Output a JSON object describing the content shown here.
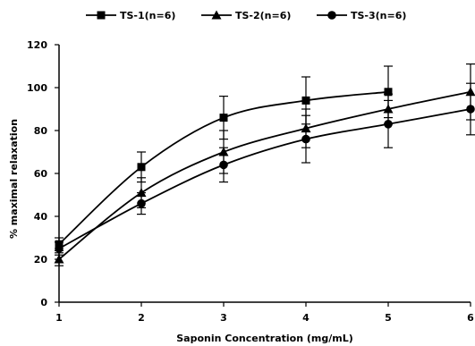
{
  "chart_data": {
    "type": "line",
    "xlabel": "Saponin Concentration (mg/mL)",
    "ylabel": "% maximal relaxation",
    "xlim": [
      1,
      6
    ],
    "ylim": [
      0,
      120
    ],
    "xticks": [
      "1",
      "2",
      "3",
      "4",
      "5",
      "6"
    ],
    "yticks": [
      "0",
      "20",
      "40",
      "60",
      "80",
      "100",
      "120"
    ],
    "legend_position": "top",
    "grid": false,
    "series": [
      {
        "name": "TS-1(n=6)",
        "marker": "square",
        "x": [
          1,
          2,
          3,
          4,
          5
        ],
        "y": [
          27,
          63,
          86,
          94,
          98
        ],
        "err": [
          3,
          7,
          10,
          11,
          12
        ]
      },
      {
        "name": "TS-2(n=6)",
        "marker": "triangle",
        "x": [
          1,
          2,
          3,
          4,
          5,
          6
        ],
        "y": [
          20,
          51,
          70,
          81,
          90,
          98
        ],
        "err": [
          3,
          7,
          10,
          9,
          7,
          13
        ]
      },
      {
        "name": "TS-3(n=6)",
        "marker": "circle",
        "x": [
          1,
          2,
          3,
          4,
          5,
          6
        ],
        "y": [
          25,
          46,
          64,
          76,
          83,
          90
        ],
        "err": [
          3,
          5,
          8,
          11,
          11,
          12
        ]
      }
    ]
  }
}
